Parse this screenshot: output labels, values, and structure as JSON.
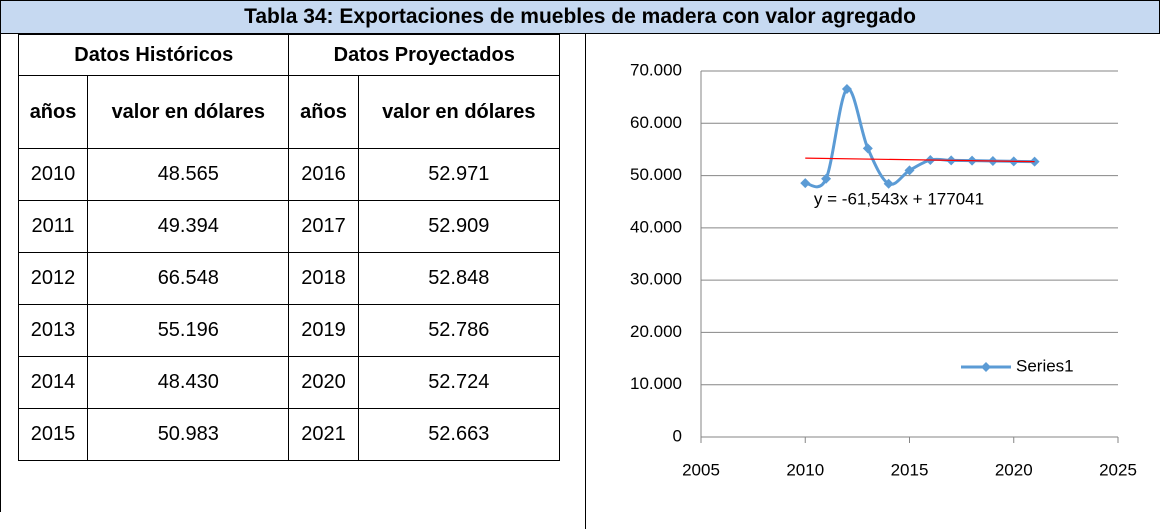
{
  "title": "Tabla 34: Exportaciones de muebles de madera con valor agregado",
  "table": {
    "group_headers": [
      "Datos Históricos",
      "Datos Proyectados"
    ],
    "column_headers": [
      "años",
      "valor en dólares",
      "años",
      "valor en dólares"
    ],
    "rows": [
      [
        "2010",
        "48.565",
        "2016",
        "52.971"
      ],
      [
        "2011",
        "49.394",
        "2017",
        "52.909"
      ],
      [
        "2012",
        "66.548",
        "2018",
        "52.848"
      ],
      [
        "2013",
        "55.196",
        "2019",
        "52.786"
      ],
      [
        "2014",
        "48.430",
        "2020",
        "52.724"
      ],
      [
        "2015",
        "50.983",
        "2021",
        "52.663"
      ]
    ]
  },
  "chart_data": {
    "type": "line",
    "x": [
      2010,
      2011,
      2012,
      2013,
      2014,
      2015,
      2016,
      2017,
      2018,
      2019,
      2020,
      2021
    ],
    "series": [
      {
        "name": "Series1",
        "color": "#5b9bd5",
        "values": [
          48565,
          49394,
          66548,
          55196,
          48430,
          50983,
          52971,
          52909,
          52848,
          52786,
          52724,
          52663
        ]
      }
    ],
    "xlim": [
      2005,
      2025
    ],
    "xticks": [
      2005,
      2010,
      2015,
      2020,
      2025
    ],
    "ylim": [
      0,
      70000
    ],
    "yticks": [
      0,
      {
        "value": 10000,
        "label": "10.000"
      },
      {
        "value": 20000,
        "label": "20.000"
      },
      {
        "value": 30000,
        "label": "30.000"
      },
      {
        "value": 40000,
        "label": "40.000"
      },
      {
        "value": 50000,
        "label": "50.000"
      },
      {
        "value": 60000,
        "label": "60.000"
      },
      {
        "value": 70000,
        "label": "70.000"
      }
    ],
    "grid": true,
    "smooth": true,
    "legend": "right",
    "trendline": {
      "label": "y = -61,543x + 177041",
      "slope": -61.543,
      "intercept": 177041,
      "color": "#ff0000"
    }
  }
}
